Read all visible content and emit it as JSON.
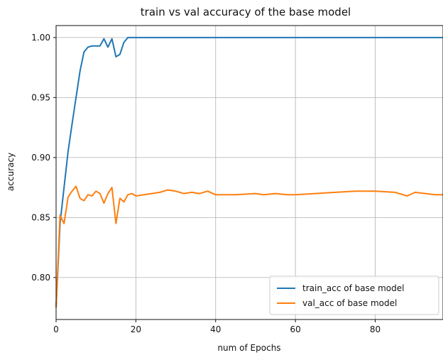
{
  "chart_data": {
    "type": "line",
    "title": "train vs val accuracy of the base model",
    "xlabel": "num of Epochs",
    "ylabel": "accuracy",
    "xlim": [
      0,
      97
    ],
    "ylim": [
      0.765,
      1.01
    ],
    "grid": true,
    "legend_position": "lower-right",
    "x_ticks": [
      {
        "value": 0,
        "label": "0"
      },
      {
        "value": 20,
        "label": "20"
      },
      {
        "value": 40,
        "label": "40"
      },
      {
        "value": 60,
        "label": "60"
      },
      {
        "value": 80,
        "label": "80"
      }
    ],
    "y_ticks": [
      {
        "value": 0.8,
        "label": "0.80"
      },
      {
        "value": 0.85,
        "label": "0.85"
      },
      {
        "value": 0.9,
        "label": "0.90"
      },
      {
        "value": 0.95,
        "label": "0.95"
      },
      {
        "value": 1.0,
        "label": "1.00"
      }
    ],
    "series": [
      {
        "name": "train_acc of base model",
        "color": "#1f77b4",
        "points": [
          [
            0,
            0.775
          ],
          [
            1,
            0.845
          ],
          [
            2,
            0.875
          ],
          [
            3,
            0.905
          ],
          [
            4,
            0.928
          ],
          [
            5,
            0.95
          ],
          [
            6,
            0.972
          ],
          [
            7,
            0.988
          ],
          [
            8,
            0.992
          ],
          [
            9,
            0.993
          ],
          [
            10,
            0.993
          ],
          [
            11,
            0.993
          ],
          [
            12,
            0.999
          ],
          [
            13,
            0.992
          ],
          [
            14,
            0.999
          ],
          [
            15,
            0.984
          ],
          [
            16,
            0.986
          ],
          [
            17,
            0.996
          ],
          [
            18,
            1.0
          ],
          [
            20,
            1.0
          ],
          [
            30,
            1.0
          ],
          [
            40,
            1.0
          ],
          [
            50,
            1.0
          ],
          [
            60,
            1.0
          ],
          [
            70,
            1.0
          ],
          [
            80,
            1.0
          ],
          [
            90,
            1.0
          ],
          [
            97,
            1.0
          ]
        ]
      },
      {
        "name": "val_acc of base model",
        "color": "#ff7f0e",
        "points": [
          [
            0,
            0.775
          ],
          [
            1,
            0.852
          ],
          [
            2,
            0.845
          ],
          [
            3,
            0.867
          ],
          [
            4,
            0.872
          ],
          [
            5,
            0.876
          ],
          [
            6,
            0.866
          ],
          [
            7,
            0.864
          ],
          [
            8,
            0.869
          ],
          [
            9,
            0.868
          ],
          [
            10,
            0.872
          ],
          [
            11,
            0.87
          ],
          [
            12,
            0.862
          ],
          [
            13,
            0.87
          ],
          [
            14,
            0.875
          ],
          [
            15,
            0.845
          ],
          [
            16,
            0.866
          ],
          [
            17,
            0.863
          ],
          [
            18,
            0.869
          ],
          [
            19,
            0.87
          ],
          [
            20,
            0.868
          ],
          [
            22,
            0.869
          ],
          [
            24,
            0.87
          ],
          [
            26,
            0.871
          ],
          [
            28,
            0.873
          ],
          [
            30,
            0.872
          ],
          [
            32,
            0.87
          ],
          [
            34,
            0.871
          ],
          [
            36,
            0.87
          ],
          [
            38,
            0.872
          ],
          [
            40,
            0.869
          ],
          [
            45,
            0.869
          ],
          [
            50,
            0.87
          ],
          [
            52,
            0.869
          ],
          [
            55,
            0.87
          ],
          [
            58,
            0.869
          ],
          [
            60,
            0.869
          ],
          [
            65,
            0.87
          ],
          [
            70,
            0.871
          ],
          [
            75,
            0.872
          ],
          [
            80,
            0.872
          ],
          [
            85,
            0.871
          ],
          [
            88,
            0.868
          ],
          [
            90,
            0.871
          ],
          [
            95,
            0.869
          ],
          [
            97,
            0.869
          ]
        ]
      }
    ]
  }
}
